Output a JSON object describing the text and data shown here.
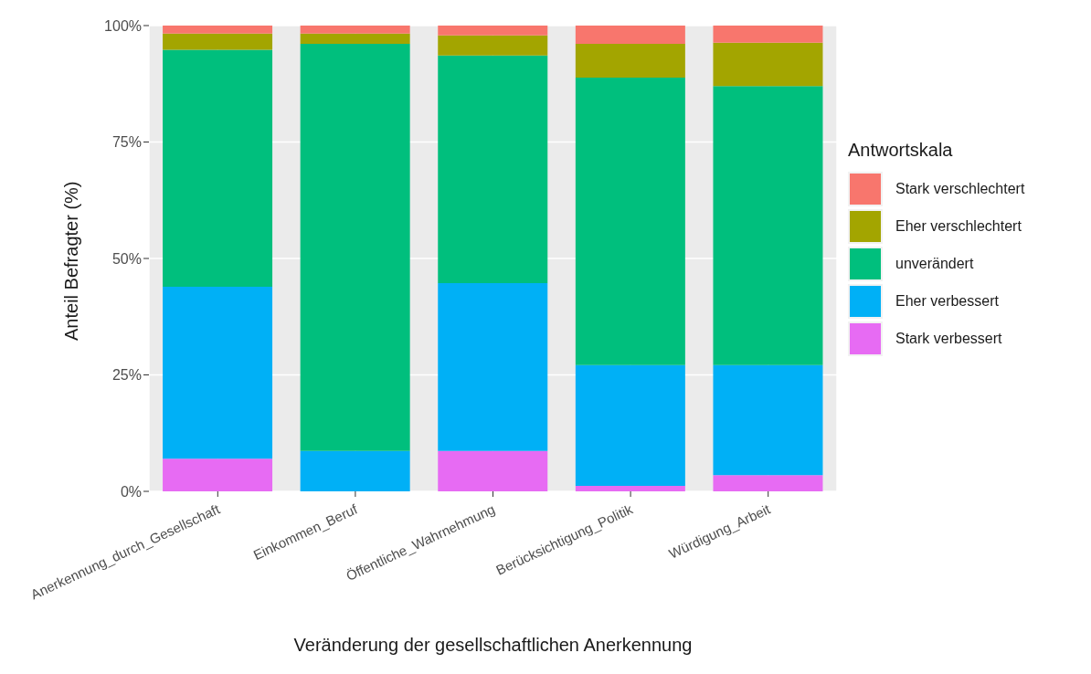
{
  "chart_data": {
    "type": "bar",
    "stacked": true,
    "xlabel": "Veränderung der gesellschaftlichen Anerkennung",
    "ylabel": "Anteil Befragter (%)",
    "legend_title": "Antwortskala",
    "legend": "right",
    "grid": true,
    "categories": [
      "Anerkennung_durch_Gesellschaft",
      "Einkommen_Beruf",
      "Öffentliche_Wahrnehmung",
      "Berücksichtigung_Politik",
      "Würdigung_Arbeit"
    ],
    "ylim": [
      0,
      100
    ],
    "yticks": [
      {
        "value": 0,
        "label": "0%"
      },
      {
        "value": 25,
        "label": "25%"
      },
      {
        "value": 50,
        "label": "50%"
      },
      {
        "value": 75,
        "label": "75%"
      },
      {
        "value": 100,
        "label": "100%"
      }
    ],
    "series": [
      {
        "name": "Stark verbessert",
        "color": "#e76bf3",
        "values": [
          7.0,
          0,
          8.7,
          1.2,
          3.5
        ]
      },
      {
        "name": "Eher verbessert",
        "color": "#00b0f6",
        "values": [
          36.9,
          8.7,
          36.0,
          25.9,
          23.6
        ]
      },
      {
        "name": "unverändert",
        "color": "#00bf7d",
        "values": [
          50.9,
          87.4,
          48.9,
          61.7,
          59.9
        ]
      },
      {
        "name": "Eher verschlechtert",
        "color": "#a3a500",
        "values": [
          3.5,
          2.2,
          4.3,
          7.3,
          9.3
        ]
      },
      {
        "name": "Stark verschlechtert",
        "color": "#f8766d",
        "values": [
          1.7,
          1.7,
          2.1,
          3.9,
          3.7
        ]
      }
    ]
  }
}
